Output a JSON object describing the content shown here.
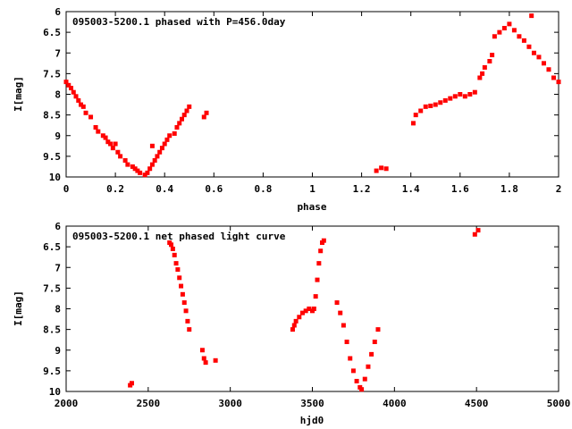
{
  "chart_data": [
    {
      "type": "scatter",
      "title": "095003-5200.1 phased with P=456.0day",
      "xlabel": "phase",
      "ylabel": "I[mag]",
      "xlim": [
        0,
        2
      ],
      "ylim": [
        10,
        6
      ],
      "y_inverted": true,
      "xticks": [
        "0",
        "0.2",
        "0.4",
        "0.6",
        "0.8",
        "1",
        "1.2",
        "1.4",
        "1.6",
        "1.8",
        "2"
      ],
      "yticks": [
        "6",
        "6.5",
        "7",
        "7.5",
        "8",
        "8.5",
        "9",
        "9.5",
        "10"
      ],
      "grid": false,
      "marker_color": "#ff0000",
      "series": [
        {
          "points": [
            [
              0.0,
              7.7
            ],
            [
              0.01,
              7.78
            ],
            [
              0.02,
              7.85
            ],
            [
              0.03,
              7.95
            ],
            [
              0.04,
              8.05
            ],
            [
              0.05,
              8.15
            ],
            [
              0.06,
              8.25
            ],
            [
              0.07,
              8.3
            ],
            [
              0.08,
              8.45
            ],
            [
              0.1,
              8.55
            ],
            [
              0.12,
              8.8
            ],
            [
              0.13,
              8.9
            ],
            [
              0.15,
              9.0
            ],
            [
              0.16,
              9.05
            ],
            [
              0.17,
              9.15
            ],
            [
              0.18,
              9.2
            ],
            [
              0.19,
              9.3
            ],
            [
              0.21,
              9.4
            ],
            [
              0.22,
              9.5
            ],
            [
              0.24,
              9.6
            ],
            [
              0.25,
              9.7
            ],
            [
              0.27,
              9.75
            ],
            [
              0.28,
              9.8
            ],
            [
              0.29,
              9.85
            ],
            [
              0.3,
              9.9
            ],
            [
              0.32,
              9.95
            ],
            [
              0.33,
              9.9
            ],
            [
              0.34,
              9.8
            ],
            [
              0.35,
              9.7
            ],
            [
              0.36,
              9.6
            ],
            [
              0.37,
              9.5
            ],
            [
              0.38,
              9.4
            ],
            [
              0.39,
              9.3
            ],
            [
              0.4,
              9.2
            ],
            [
              0.41,
              9.1
            ],
            [
              0.42,
              9.0
            ],
            [
              0.44,
              8.95
            ],
            [
              0.45,
              8.8
            ],
            [
              0.46,
              8.7
            ],
            [
              0.47,
              8.6
            ],
            [
              0.48,
              8.5
            ],
            [
              0.49,
              8.4
            ],
            [
              0.5,
              8.3
            ],
            [
              0.2,
              9.2
            ],
            [
              0.35,
              9.25
            ],
            [
              0.56,
              8.55
            ],
            [
              0.57,
              8.45
            ],
            [
              1.26,
              9.85
            ],
            [
              1.28,
              9.78
            ],
            [
              1.3,
              9.8
            ],
            [
              1.41,
              8.7
            ],
            [
              1.42,
              8.5
            ],
            [
              1.44,
              8.4
            ],
            [
              1.46,
              8.3
            ],
            [
              1.48,
              8.28
            ],
            [
              1.5,
              8.25
            ],
            [
              1.52,
              8.2
            ],
            [
              1.54,
              8.15
            ],
            [
              1.56,
              8.1
            ],
            [
              1.58,
              8.05
            ],
            [
              1.6,
              8.0
            ],
            [
              1.62,
              8.05
            ],
            [
              1.64,
              8.0
            ],
            [
              1.66,
              7.95
            ],
            [
              1.68,
              7.6
            ],
            [
              1.69,
              7.5
            ],
            [
              1.7,
              7.35
            ],
            [
              1.72,
              7.2
            ],
            [
              1.73,
              7.05
            ],
            [
              1.74,
              6.6
            ],
            [
              1.76,
              6.5
            ],
            [
              1.78,
              6.4
            ],
            [
              1.8,
              6.3
            ],
            [
              1.82,
              6.45
            ],
            [
              1.84,
              6.6
            ],
            [
              1.86,
              6.7
            ],
            [
              1.88,
              6.85
            ],
            [
              1.89,
              6.1
            ],
            [
              1.9,
              7.0
            ],
            [
              1.92,
              7.1
            ],
            [
              1.94,
              7.25
            ],
            [
              1.96,
              7.4
            ],
            [
              1.98,
              7.6
            ],
            [
              2.0,
              7.7
            ]
          ]
        }
      ]
    },
    {
      "type": "scatter",
      "title": "095003-5200.1 net phased light curve",
      "xlabel": "hjd0",
      "ylabel": "I[mag]",
      "xlim": [
        2000,
        5000
      ],
      "ylim": [
        10,
        6
      ],
      "y_inverted": true,
      "xticks": [
        "2000",
        "2500",
        "3000",
        "3500",
        "4000",
        "4500",
        "5000"
      ],
      "yticks": [
        "6",
        "6.5",
        "7",
        "7.5",
        "8",
        "8.5",
        "9",
        "9.5",
        "10"
      ],
      "grid": false,
      "marker_color": "#ff0000",
      "series": [
        {
          "points": [
            [
              2390,
              9.85
            ],
            [
              2400,
              9.8
            ],
            [
              2630,
              6.4
            ],
            [
              2640,
              6.45
            ],
            [
              2650,
              6.55
            ],
            [
              2660,
              6.7
            ],
            [
              2670,
              6.9
            ],
            [
              2680,
              7.05
            ],
            [
              2690,
              7.25
            ],
            [
              2700,
              7.45
            ],
            [
              2710,
              7.65
            ],
            [
              2720,
              7.85
            ],
            [
              2730,
              8.05
            ],
            [
              2740,
              8.3
            ],
            [
              2750,
              8.5
            ],
            [
              2830,
              9.0
            ],
            [
              2840,
              9.2
            ],
            [
              2850,
              9.3
            ],
            [
              2910,
              9.25
            ],
            [
              3380,
              8.5
            ],
            [
              3390,
              8.4
            ],
            [
              3400,
              8.3
            ],
            [
              3420,
              8.2
            ],
            [
              3440,
              8.1
            ],
            [
              3460,
              8.05
            ],
            [
              3480,
              8.0
            ],
            [
              3500,
              8.05
            ],
            [
              3510,
              8.0
            ],
            [
              3520,
              7.7
            ],
            [
              3530,
              7.3
            ],
            [
              3540,
              6.9
            ],
            [
              3550,
              6.6
            ],
            [
              3560,
              6.4
            ],
            [
              3570,
              6.35
            ],
            [
              3650,
              7.85
            ],
            [
              3670,
              8.1
            ],
            [
              3690,
              8.4
            ],
            [
              3710,
              8.8
            ],
            [
              3730,
              9.2
            ],
            [
              3750,
              9.5
            ],
            [
              3770,
              9.75
            ],
            [
              3790,
              9.9
            ],
            [
              3800,
              9.95
            ],
            [
              3820,
              9.7
            ],
            [
              3840,
              9.4
            ],
            [
              3860,
              9.1
            ],
            [
              3880,
              8.8
            ],
            [
              3900,
              8.5
            ],
            [
              4490,
              6.2
            ],
            [
              4510,
              6.1
            ]
          ]
        }
      ]
    }
  ]
}
